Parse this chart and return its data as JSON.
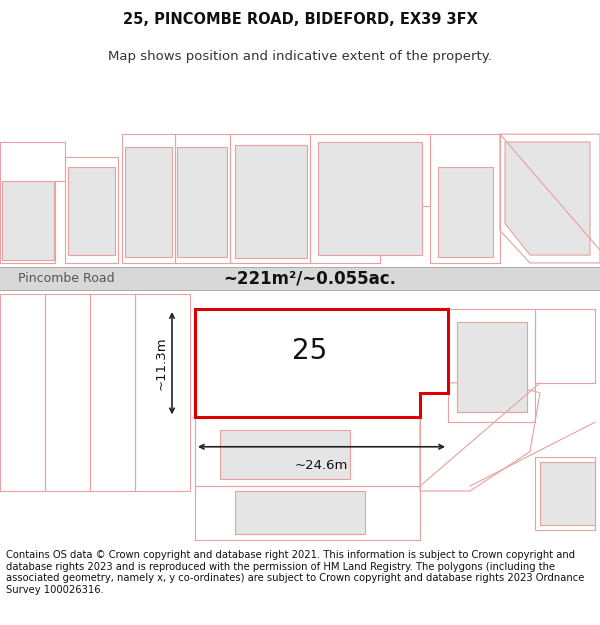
{
  "title": "25, PINCOMBE ROAD, BIDEFORD, EX39 3FX",
  "subtitle": "Map shows position and indicative extent of the property.",
  "footer_text": "Contains OS data © Crown copyright and database right 2021. This information is subject to Crown copyright and database rights 2023 and is reproduced with the permission of HM Land Registry. The polygons (including the associated geometry, namely x, y co-ordinates) are subject to Crown copyright and database rights 2023 Ordnance Survey 100026316.",
  "bg_color": "#ffffff",
  "map_bg": "#ffffff",
  "road_color": "#d8d8d8",
  "plot_outline_color": "#e8a0a0",
  "highlight_color": "#dd0000",
  "building_fill": "#e5e5e5",
  "road_label": "Pincombe Road",
  "area_label": "~221m²/~0.055ac.",
  "plot_label": "25",
  "dim_width": "~24.6m",
  "dim_height": "~11.3m",
  "title_fontsize": 10.5,
  "subtitle_fontsize": 9.5,
  "footer_fontsize": 7.2,
  "road_label_fontsize": 9,
  "area_label_fontsize": 12,
  "plot_label_fontsize": 20
}
